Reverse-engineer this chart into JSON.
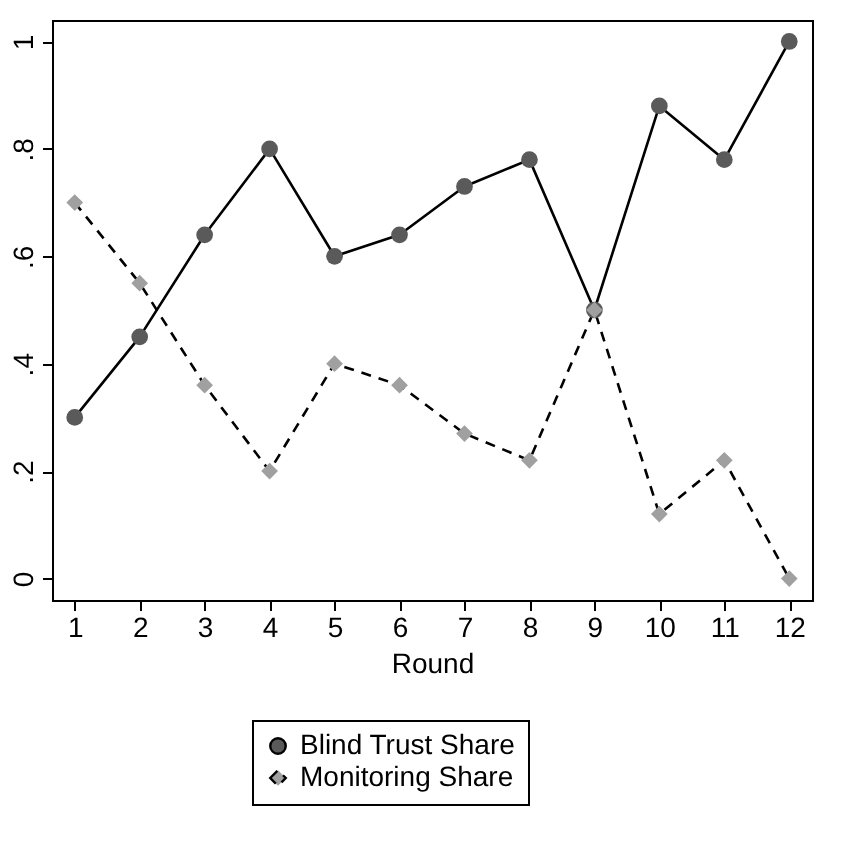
{
  "chart_data": {
    "type": "line",
    "xlabel": "Round",
    "x": [
      1,
      2,
      3,
      4,
      5,
      6,
      7,
      8,
      9,
      10,
      11,
      12
    ],
    "series": [
      {
        "name": "Blind Trust Share",
        "color": "#5a5a5a",
        "marker": "circle",
        "line_style": "solid",
        "values": [
          0.3,
          0.45,
          0.64,
          0.8,
          0.6,
          0.64,
          0.73,
          0.78,
          0.5,
          0.88,
          0.78,
          1.0
        ]
      },
      {
        "name": "Monitoring Share",
        "color": "#a0a0a0",
        "marker": "diamond",
        "line_style": "dashed",
        "values": [
          0.7,
          0.55,
          0.36,
          0.2,
          0.4,
          0.36,
          0.27,
          0.22,
          0.5,
          0.12,
          0.22,
          0.0
        ]
      }
    ],
    "xlim": [
      0.65,
      12.35
    ],
    "xticks": [
      1,
      2,
      3,
      4,
      5,
      6,
      7,
      8,
      9,
      10,
      11,
      12
    ],
    "ylim": [
      -0.04,
      1.04
    ],
    "yticks": [
      {
        "value": 0,
        "label": "0"
      },
      {
        "value": 0.2,
        "label": ".2"
      },
      {
        "value": 0.4,
        "label": ".4"
      },
      {
        "value": 0.6,
        "label": ".6"
      },
      {
        "value": 0.8,
        "label": ".8"
      },
      {
        "value": 1,
        "label": "1"
      }
    ],
    "grid": false,
    "legend": "bottom"
  }
}
